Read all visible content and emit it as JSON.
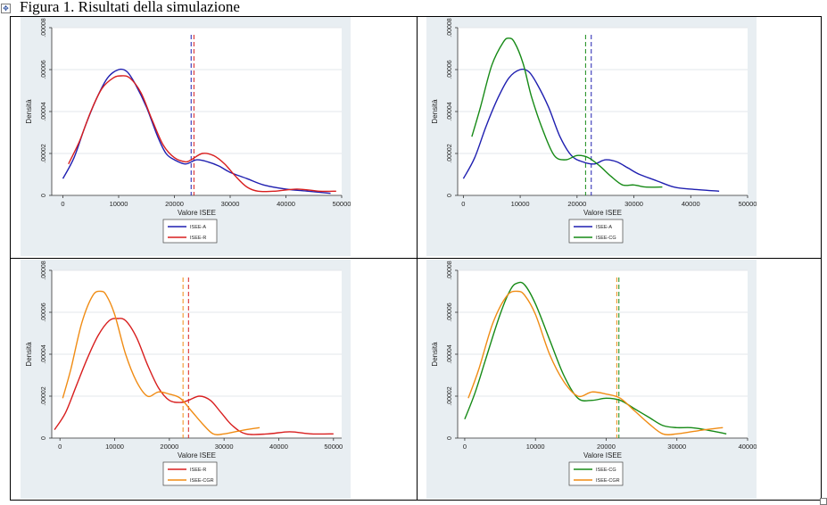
{
  "title": "Figura 1. Risultati della simulazione",
  "colors": {
    "ISEE-A": "#1f1fb0",
    "ISEE-R": "#d81e1e",
    "ISEE-CG": "#168a16",
    "ISEE-CGR": "#f08c14",
    "panel_bg": "#e8eef2",
    "plot_bg": "#ffffff",
    "grid": "#e3e7eb"
  },
  "chart_data": [
    {
      "type": "line",
      "xlabel": "Valore ISEE",
      "ylabel": "Densità",
      "xlim": [
        -2000,
        50000
      ],
      "ylim": [
        0,
        8e-05
      ],
      "xticks": [
        0,
        10000,
        20000,
        30000,
        40000,
        50000
      ],
      "yticks": [
        0,
        2e-05,
        4e-05,
        6e-05,
        8e-05
      ],
      "xtick_labels": [
        "0",
        "10000",
        "20000",
        "30000",
        "40000",
        "50000"
      ],
      "ytick_labels": [
        "0",
        ".00002",
        ".00004",
        ".00006",
        ".00008"
      ],
      "legend": "bottom-center",
      "series": [
        {
          "name": "ISEE-A",
          "color_key": "ISEE-A",
          "x": [
            0,
            2000,
            4000,
            6000,
            8000,
            10000,
            11500,
            13000,
            15000,
            17000,
            18500,
            20000,
            22000,
            24000,
            26000,
            28000,
            30000,
            33000,
            36000,
            40000,
            44000,
            48000
          ],
          "y": [
            8e-06,
            1.8e-05,
            3.3e-05,
            4.6e-05,
            5.6e-05,
            6e-05,
            5.9e-05,
            5.3e-05,
            4.2e-05,
            2.8e-05,
            2e-05,
            1.7e-05,
            1.5e-05,
            1.7e-05,
            1.6e-05,
            1.4e-05,
            1.1e-05,
            8e-06,
            5e-06,
            3e-06,
            2e-06,
            1e-06
          ]
        },
        {
          "name": "ISEE-R",
          "color_key": "ISEE-R",
          "x": [
            1000,
            3000,
            5000,
            7000,
            9000,
            10500,
            12000,
            14000,
            16000,
            18000,
            20000,
            22000,
            23000,
            25000,
            27000,
            29000,
            31000,
            33000,
            35000,
            38000,
            42000,
            46000,
            49000
          ],
          "y": [
            1.5e-05,
            2.6e-05,
            4e-05,
            5.1e-05,
            5.6e-05,
            5.7e-05,
            5.6e-05,
            4.9e-05,
            3.6e-05,
            2.4e-05,
            1.8e-05,
            1.6e-05,
            1.7e-05,
            2e-05,
            1.9e-05,
            1.5e-05,
            9e-06,
            4e-06,
            2e-06,
            2e-06,
            3e-06,
            2e-06,
            2e-06
          ]
        }
      ],
      "vlines": [
        {
          "x": 23000,
          "color_key": "ISEE-A"
        },
        {
          "x": 23500,
          "color_key": "ISEE-R"
        }
      ]
    },
    {
      "type": "line",
      "xlabel": "Valore ISEE",
      "ylabel": "Densità",
      "xlim": [
        -1000,
        50000
      ],
      "ylim": [
        0,
        8e-05
      ],
      "xticks": [
        0,
        10000,
        20000,
        30000,
        40000,
        50000
      ],
      "yticks": [
        0,
        2e-05,
        4e-05,
        6e-05,
        8e-05
      ],
      "xtick_labels": [
        "0",
        "10000",
        "20000",
        "30000",
        "40000",
        "50000"
      ],
      "ytick_labels": [
        "0",
        ".00002",
        ".00004",
        ".00006",
        ".00008"
      ],
      "legend": "bottom-center",
      "series": [
        {
          "name": "ISEE-A",
          "color_key": "ISEE-A",
          "x": [
            0,
            2000,
            4000,
            6000,
            8000,
            10000,
            11500,
            13000,
            15000,
            17000,
            19000,
            21000,
            23000,
            25000,
            27000,
            29000,
            31000,
            34000,
            37000,
            40000,
            45000
          ],
          "y": [
            8e-06,
            1.8e-05,
            3.3e-05,
            4.6e-05,
            5.6e-05,
            6e-05,
            5.9e-05,
            5.3e-05,
            4.2e-05,
            2.8e-05,
            1.9e-05,
            1.6e-05,
            1.5e-05,
            1.7e-05,
            1.6e-05,
            1.3e-05,
            1e-05,
            7e-06,
            4e-06,
            3e-06,
            2e-06
          ]
        },
        {
          "name": "ISEE-CG",
          "color_key": "ISEE-CG",
          "x": [
            1500,
            3000,
            5000,
            7000,
            8000,
            9000,
            10500,
            12000,
            14000,
            16000,
            18000,
            20000,
            22000,
            24000,
            26000,
            28000,
            30000,
            32000,
            35000
          ],
          "y": [
            2.8e-05,
            4.2e-05,
            6.2e-05,
            7.3e-05,
            7.5e-05,
            7.3e-05,
            6.3e-05,
            4.7e-05,
            3.1e-05,
            1.9e-05,
            1.7e-05,
            1.9e-05,
            1.8e-05,
            1.4e-05,
            9e-06,
            5e-06,
            5e-06,
            4e-06,
            4e-06
          ]
        }
      ],
      "vlines": [
        {
          "x": 21500,
          "color_key": "ISEE-CG"
        },
        {
          "x": 22500,
          "color_key": "ISEE-A"
        }
      ]
    },
    {
      "type": "line",
      "xlabel": "Valore ISEE",
      "ylabel": "Densità",
      "xlim": [
        -1500,
        51500
      ],
      "ylim": [
        0,
        8e-05
      ],
      "xticks": [
        0,
        10000,
        20000,
        30000,
        40000,
        50000
      ],
      "yticks": [
        0,
        2e-05,
        4e-05,
        6e-05,
        8e-05
      ],
      "xtick_labels": [
        "0",
        "10000",
        "20000",
        "30000",
        "40000",
        "50000"
      ],
      "ytick_labels": [
        "0",
        ".00002",
        ".00004",
        ".00006",
        ".00008"
      ],
      "legend": "bottom-center",
      "series": [
        {
          "name": "ISEE-R",
          "color_key": "ISEE-R",
          "x": [
            -1000,
            1000,
            3000,
            5000,
            7000,
            9000,
            10500,
            12000,
            14000,
            16000,
            18000,
            20000,
            22000,
            23500,
            25500,
            27500,
            29500,
            31500,
            34000,
            38000,
            42000,
            46000,
            50000
          ],
          "y": [
            4e-06,
            1.2e-05,
            2.5e-05,
            3.8e-05,
            4.9e-05,
            5.6e-05,
            5.7e-05,
            5.6e-05,
            4.8e-05,
            3.5e-05,
            2.4e-05,
            1.8e-05,
            1.7e-05,
            1.8e-05,
            2e-05,
            1.8e-05,
            1.2e-05,
            6e-06,
            2e-06,
            2e-06,
            3e-06,
            2e-06,
            2e-06
          ]
        },
        {
          "name": "ISEE-CGR",
          "color_key": "ISEE-CGR",
          "x": [
            500,
            2000,
            4000,
            6000,
            7500,
            8500,
            10000,
            12000,
            14000,
            16000,
            18000,
            20000,
            22000,
            24000,
            26000,
            28000,
            30000,
            32000,
            34000,
            36500
          ],
          "y": [
            1.9e-05,
            3.3e-05,
            5.5e-05,
            6.8e-05,
            7e-05,
            6.8e-05,
            5.9e-05,
            4e-05,
            2.7e-05,
            2e-05,
            2.2e-05,
            2.1e-05,
            1.9e-05,
            1.3e-05,
            7e-06,
            2e-06,
            2e-06,
            3e-06,
            4e-06,
            5e-06
          ]
        }
      ],
      "vlines": [
        {
          "x": 22500,
          "color_key": "ISEE-CGR"
        },
        {
          "x": 23500,
          "color_key": "ISEE-R"
        }
      ]
    },
    {
      "type": "line",
      "xlabel": "Valore ISEE",
      "ylabel": "Densità",
      "xlim": [
        -1000,
        40000
      ],
      "ylim": [
        0,
        8e-05
      ],
      "xticks": [
        0,
        10000,
        20000,
        30000,
        40000
      ],
      "yticks": [
        0,
        2e-05,
        4e-05,
        6e-05,
        8e-05
      ],
      "xtick_labels": [
        "0",
        "10000",
        "20000",
        "30000",
        "40000"
      ],
      "ytick_labels": [
        "0",
        ".00002",
        ".00004",
        ".00006",
        ".00008"
      ],
      "legend": "bottom-center",
      "series": [
        {
          "name": "ISEE-CG",
          "color_key": "ISEE-CG",
          "x": [
            0,
            1500,
            3000,
            5000,
            6500,
            7500,
            8500,
            10000,
            12000,
            14000,
            16000,
            18000,
            20000,
            22000,
            24000,
            26000,
            28000,
            30000,
            32000,
            34000,
            37000
          ],
          "y": [
            9e-06,
            2.2e-05,
            3.8e-05,
            5.9e-05,
            7.1e-05,
            7.4e-05,
            7.3e-05,
            6.4e-05,
            4.7e-05,
            3e-05,
            1.9e-05,
            1.8e-05,
            1.9e-05,
            1.8e-05,
            1.4e-05,
            1e-05,
            6e-06,
            5e-06,
            5e-06,
            4e-06,
            2e-06
          ]
        },
        {
          "name": "ISEE-CGR",
          "color_key": "ISEE-CGR",
          "x": [
            500,
            2000,
            4000,
            6000,
            7500,
            8500,
            10000,
            12000,
            14000,
            16000,
            18000,
            20000,
            22000,
            24000,
            26000,
            28000,
            30000,
            32000,
            34000,
            36500
          ],
          "y": [
            1.9e-05,
            3.3e-05,
            5.5e-05,
            6.8e-05,
            7e-05,
            6.8e-05,
            5.9e-05,
            4e-05,
            2.7e-05,
            2e-05,
            2.2e-05,
            2.1e-05,
            1.9e-05,
            1.3e-05,
            7e-06,
            2e-06,
            2e-06,
            3e-06,
            4e-06,
            5e-06
          ]
        }
      ],
      "vlines": [
        {
          "x": 21500,
          "color_key": "ISEE-CGR"
        },
        {
          "x": 21800,
          "color_key": "ISEE-CG"
        }
      ]
    }
  ]
}
